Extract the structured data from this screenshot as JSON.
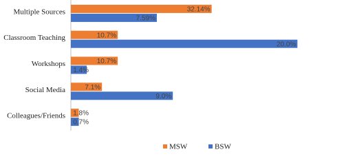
{
  "chart_data": {
    "type": "hbar",
    "categories": [
      "Multiple Sources",
      "Classroom Teaching",
      "Workshops",
      "Social Media",
      "Colleagues/Friends"
    ],
    "series": [
      {
        "name": "MSW",
        "color": "#ed7d31",
        "xlim": [
          0,
          60
        ],
        "values": [
          32.14,
          10.7,
          10.7,
          7.1,
          1.8
        ],
        "value_labels": [
          "32.14%",
          "10.7%",
          "10.7%",
          "7.1%",
          "1.8%"
        ]
      },
      {
        "name": "BSW",
        "color": "#4472c4",
        "xlim": [
          0,
          23.2
        ],
        "values": [
          7.59,
          20.0,
          1.4,
          9.0,
          0.7
        ],
        "value_labels": [
          "7.59%",
          "20.0%",
          "1.4%",
          "9.0%",
          "0.7%"
        ]
      }
    ],
    "legend": "bottom"
  }
}
